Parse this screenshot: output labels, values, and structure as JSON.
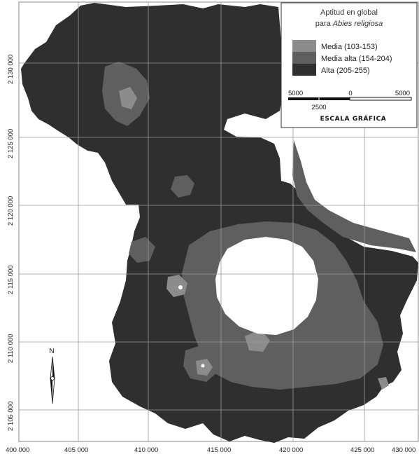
{
  "colors": {
    "alta": "#2f2f2f",
    "media_alta": "#5f5f5f",
    "media": "#8c8c8c",
    "background": "#ffffff",
    "grid": "#9a9a9a"
  },
  "legend": {
    "title_line1": "Aptitud en global",
    "title_line2_prefix": "para ",
    "title_line2_species": "Abies religiosa",
    "items": [
      {
        "label": "Media (103-153)",
        "color_key": "media"
      },
      {
        "label": "Media alta (154-204)",
        "color_key": "media_alta"
      },
      {
        "label": "Alta (205-255)",
        "color_key": "alta"
      }
    ]
  },
  "scale_bar": {
    "left_label": "5000",
    "center_label": "0",
    "right_label": "5000",
    "sub_label": "2500",
    "title": "ESCALA GRÁFICA"
  },
  "north_arrow": {
    "label": "N"
  },
  "x_ticks": [
    "400 000",
    "405 000",
    "410 000",
    "415 000",
    "420 000",
    "425 000",
    "430 000"
  ],
  "y_ticks": [
    "2 130 000",
    "2 125 000",
    "2 120 000",
    "2 115 000",
    "2 110 000",
    "2 105 000"
  ]
}
